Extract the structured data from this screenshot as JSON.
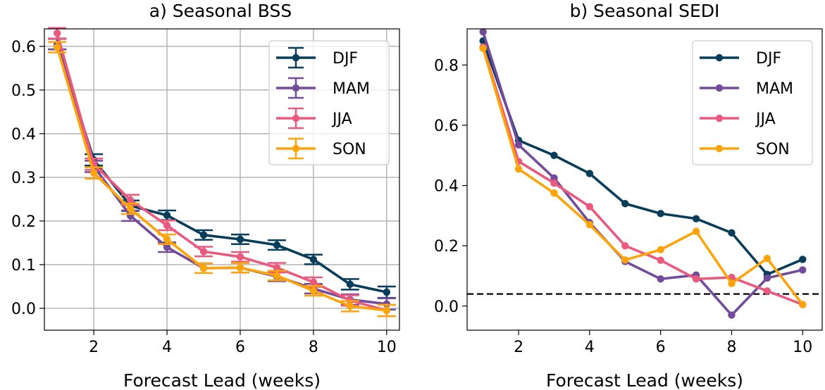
{
  "colors": {
    "DJF": "#083d5a",
    "MAM": "#724c9a",
    "JJA": "#e95a7e",
    "SON": "#fca40a"
  },
  "chart_data": [
    {
      "id": "bss",
      "type": "line",
      "title": "a) Seasonal BSS",
      "xlabel": "Forecast Lead (weeks)",
      "ylabel": "",
      "xlim": [
        0.65,
        10.35
      ],
      "ylim": [
        -0.05,
        0.64
      ],
      "grid": true,
      "error_bars": true,
      "legend_position": "top-right",
      "x_ticks": [
        2,
        4,
        6,
        8,
        10
      ],
      "x_tick_labels": [
        "2",
        "4",
        "6",
        "8",
        "10"
      ],
      "y_ticks": [
        0.0,
        0.1,
        0.2,
        0.3,
        0.4,
        0.5,
        0.6
      ],
      "y_tick_labels": [
        "0.0",
        "0.1",
        "0.2",
        "0.3",
        "0.4",
        "0.5",
        "0.6"
      ],
      "x": [
        1,
        2,
        3,
        4,
        5,
        6,
        7,
        8,
        9,
        10
      ],
      "series": [
        {
          "name": "DJF",
          "values": [
            0.605,
            0.34,
            0.235,
            0.213,
            0.168,
            0.158,
            0.145,
            0.112,
            0.055,
            0.037
          ],
          "err": [
            0.012,
            0.013,
            0.012,
            0.011,
            0.011,
            0.011,
            0.011,
            0.011,
            0.012,
            0.013
          ]
        },
        {
          "name": "MAM",
          "values": [
            0.605,
            0.325,
            0.212,
            0.14,
            0.092,
            0.093,
            0.073,
            0.045,
            0.02,
            0.01
          ],
          "err": [
            0.012,
            0.013,
            0.012,
            0.011,
            0.011,
            0.011,
            0.011,
            0.011,
            0.012,
            0.013
          ]
        },
        {
          "name": "JJA",
          "values": [
            0.63,
            0.33,
            0.248,
            0.19,
            0.13,
            0.118,
            0.093,
            0.06,
            0.018,
            -0.005
          ],
          "err": [
            0.012,
            0.013,
            0.012,
            0.011,
            0.011,
            0.011,
            0.011,
            0.011,
            0.012,
            0.013
          ]
        },
        {
          "name": "SON",
          "values": [
            0.598,
            0.31,
            0.228,
            0.158,
            0.092,
            0.093,
            0.075,
            0.04,
            0.005,
            -0.005
          ],
          "err": [
            0.012,
            0.013,
            0.012,
            0.011,
            0.011,
            0.011,
            0.011,
            0.011,
            0.012,
            0.013
          ]
        }
      ]
    },
    {
      "id": "sedi",
      "type": "line",
      "title": "b) Seasonal SEDI",
      "xlabel": "Forecast Lead (weeks)",
      "ylabel": "",
      "xlim": [
        0.55,
        10.55
      ],
      "ylim": [
        -0.08,
        0.92
      ],
      "grid": false,
      "error_bars": false,
      "legend_position": "top-right",
      "reference_line_y": 0.04,
      "x_ticks": [
        2,
        4,
        6,
        8,
        10
      ],
      "x_tick_labels": [
        "2",
        "4",
        "6",
        "8",
        "10"
      ],
      "y_ticks": [
        0.0,
        0.2,
        0.4,
        0.6,
        0.8
      ],
      "y_tick_labels": [
        "0.0",
        "0.2",
        "0.4",
        "0.6",
        "0.8"
      ],
      "x": [
        1,
        2,
        3,
        4,
        5,
        6,
        7,
        8,
        9,
        10
      ],
      "series": [
        {
          "name": "DJF",
          "values": [
            0.88,
            0.55,
            0.5,
            0.44,
            0.34,
            0.307,
            0.29,
            0.243,
            0.105,
            0.155
          ]
        },
        {
          "name": "MAM",
          "values": [
            0.91,
            0.535,
            0.425,
            0.277,
            0.148,
            0.09,
            0.103,
            -0.03,
            0.093,
            0.12
          ]
        },
        {
          "name": "JJA",
          "values": [
            0.86,
            0.48,
            0.408,
            0.33,
            0.2,
            0.152,
            0.09,
            0.095,
            0.05,
            0.005
          ]
        },
        {
          "name": "SON",
          "values": [
            0.855,
            0.455,
            0.375,
            0.27,
            0.153,
            0.187,
            0.248,
            0.075,
            0.158,
            0.005
          ]
        }
      ]
    }
  ]
}
